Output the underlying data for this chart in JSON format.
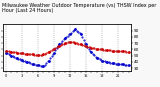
{
  "title": "Milwaukee Weather Outdoor Temperature (vs) THSW Index per Hour (Last 24 Hours)",
  "hours": [
    0,
    1,
    2,
    3,
    4,
    5,
    6,
    7,
    8,
    9,
    10,
    11,
    12,
    13,
    14,
    15,
    16,
    17,
    18,
    19,
    20,
    21,
    22,
    23
  ],
  "temp": [
    58,
    56,
    55,
    54,
    53,
    52,
    51,
    52,
    56,
    61,
    66,
    70,
    72,
    71,
    68,
    65,
    63,
    61,
    60,
    59,
    58,
    57,
    57,
    56
  ],
  "thsw": [
    55,
    50,
    46,
    43,
    40,
    37,
    35,
    33,
    42,
    55,
    68,
    78,
    85,
    92,
    85,
    68,
    56,
    47,
    42,
    40,
    38,
    37,
    36,
    35
  ],
  "temp_color": "#cc0000",
  "thsw_color": "#0000cc",
  "black_color": "#000000",
  "bg_color": "#f8f8f8",
  "plot_bg": "#ffffff",
  "grid_color": "#888888",
  "vgrid_hours": [
    0,
    3,
    6,
    9,
    12,
    15,
    18,
    21
  ],
  "ylim": [
    25,
    100
  ],
  "yticks": [
    30,
    40,
    50,
    60,
    70,
    80,
    90
  ],
  "ytick_labels": [
    "30",
    "40",
    "50",
    "60",
    "70",
    "80",
    "90"
  ],
  "xlim": [
    -0.5,
    23.5
  ],
  "title_fontsize": 3.5,
  "tick_fontsize": 3.0,
  "linewidth": 0.7,
  "markersize": 1.8
}
